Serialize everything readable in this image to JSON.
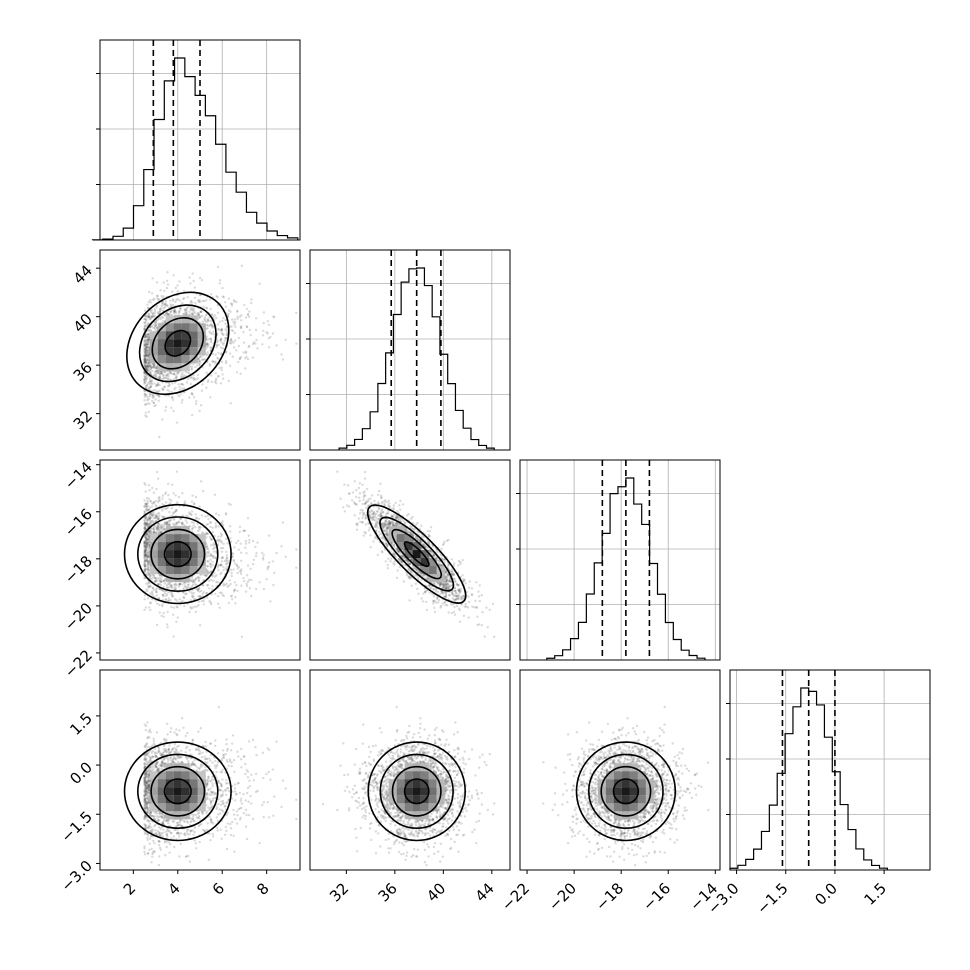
{
  "chart_data": {
    "type": "corner",
    "title": "",
    "parameters": [
      {
        "range": [
          0.5,
          9.5
        ],
        "ticks": [
          2,
          4,
          6,
          8
        ],
        "tick_labels": [
          "2",
          "4",
          "6",
          "8"
        ],
        "mean": 4.0,
        "sd": 1.2,
        "skew": true,
        "quantiles": [
          2.9,
          3.8,
          5.0
        ]
      },
      {
        "range": [
          29,
          45.5
        ],
        "ticks": [
          32,
          36,
          40,
          44
        ],
        "tick_labels": [
          "32",
          "36",
          "40",
          "44"
        ],
        "mean": 37.8,
        "sd": 2.0,
        "skew": false,
        "quantiles": [
          35.7,
          37.8,
          39.8
        ]
      },
      {
        "range": [
          -22.3,
          -13.8
        ],
        "ticks": [
          -22,
          -20,
          -18,
          -16,
          -14
        ],
        "tick_labels": [
          "−22",
          "−20",
          "−18",
          "−16",
          "−14"
        ],
        "mean": -17.8,
        "sd": 1.05,
        "skew": false,
        "quantiles": [
          -18.8,
          -17.8,
          -16.8
        ]
      },
      {
        "range": [
          -3.2,
          2.9
        ],
        "ticks": [
          -3.0,
          -1.5,
          0.0,
          1.5
        ],
        "tick_labels": [
          "−3.0",
          "−1.5",
          "0.0",
          "1.5"
        ],
        "mean": -0.8,
        "sd": 0.75,
        "skew": false,
        "quantiles": [
          -1.6,
          -0.8,
          0.0
        ]
      }
    ],
    "correlations": [
      [
        1,
        0.25,
        0.0,
        0.0
      ],
      [
        0.25,
        1,
        -0.85,
        0.0
      ],
      [
        0.0,
        -0.85,
        1,
        0.0
      ],
      [
        0.0,
        0.0,
        0.0,
        1
      ]
    ],
    "levels_sigma": [
      0.5,
      1.0,
      1.5,
      2.0
    ],
    "bins": 20,
    "histogram_color": "#000000",
    "density_cmap": [
      "#ffffff",
      "#000000"
    ],
    "grid": true,
    "legend": "none"
  }
}
